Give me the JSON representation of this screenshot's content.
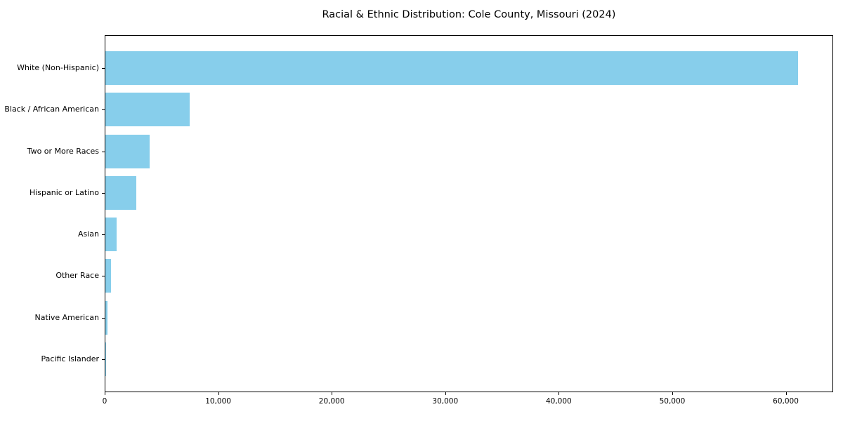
{
  "figure": {
    "title": "Racial & Ethnic Distribution: Cole County, Missouri (2024)"
  },
  "chart_data": {
    "type": "bar",
    "orientation": "horizontal",
    "title": "Racial & Ethnic Distribution: Cole County, Missouri (2024)",
    "categories": [
      "White (Non-Hispanic)",
      "Black / African American",
      "Two or More Races",
      "Hispanic or Latino",
      "Asian",
      "Other Race",
      "Native American",
      "Pacific Islander"
    ],
    "values": [
      61000,
      7400,
      3900,
      2750,
      1000,
      470,
      180,
      40
    ],
    "xlabel": "",
    "ylabel": "",
    "xlim": [
      0,
      64050
    ],
    "xticks": [
      0,
      10000,
      20000,
      30000,
      40000,
      50000,
      60000
    ],
    "xtick_labels": [
      "0",
      "10,000",
      "20,000",
      "30,000",
      "40,000",
      "50,000",
      "60,000"
    ],
    "grid": false,
    "legend": null,
    "colors": {
      "bar": "#87CEEB",
      "axis": "#000000",
      "text": "#000000",
      "background": "#ffffff"
    }
  }
}
